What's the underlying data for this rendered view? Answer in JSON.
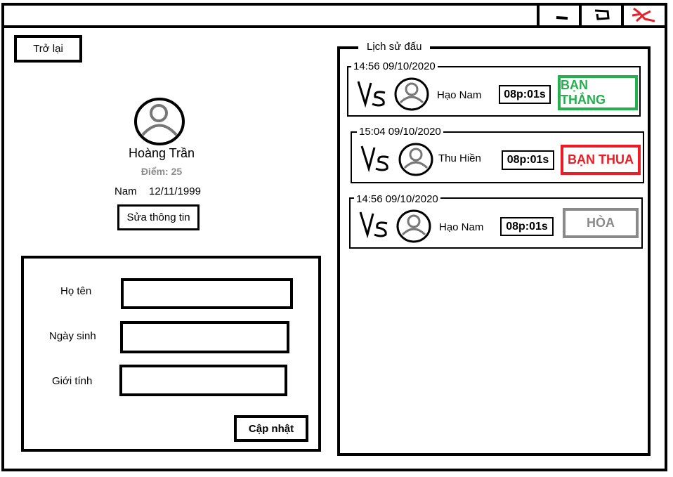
{
  "window": {
    "controls": {
      "minimize_icon": "minimize-icon",
      "maximize_icon": "maximize-icon",
      "close_icon": "close-icon"
    },
    "close_color": "#e8202a"
  },
  "nav": {
    "back_label": "Trở lại"
  },
  "profile": {
    "avatar_icon": "user-avatar-icon",
    "name": "Hoàng Trần",
    "score": "Điểm: 25",
    "gender": "Nam",
    "dob": "12/11/1999",
    "edit_label": "Sửa thông tin"
  },
  "form": {
    "fullname_label": "Họ tên",
    "dob_label": "Ngày sinh",
    "gender_label": "Giới tính",
    "fullname_value": "",
    "dob_value": "",
    "gender_value": "",
    "submit_label": "Cập nhật"
  },
  "history": {
    "title": "Lịch sử đấu",
    "matches": [
      {
        "time": "14:56 09/10/2020",
        "opponent": "Hạo Nam",
        "duration": "08p:01s",
        "result": "BẠN THẮNG",
        "result_color": "#22b14c"
      },
      {
        "time": "15:04 09/10/2020",
        "opponent": "Thu Hiền",
        "duration": "08p:01s",
        "result": "BẠN THUA",
        "result_color": "#ed1c24"
      },
      {
        "time": "14:56 09/10/2020",
        "opponent": "Hạo Nam",
        "duration": "08p:01s",
        "result": "HÒA",
        "result_color": "#8a8a8a"
      }
    ]
  }
}
